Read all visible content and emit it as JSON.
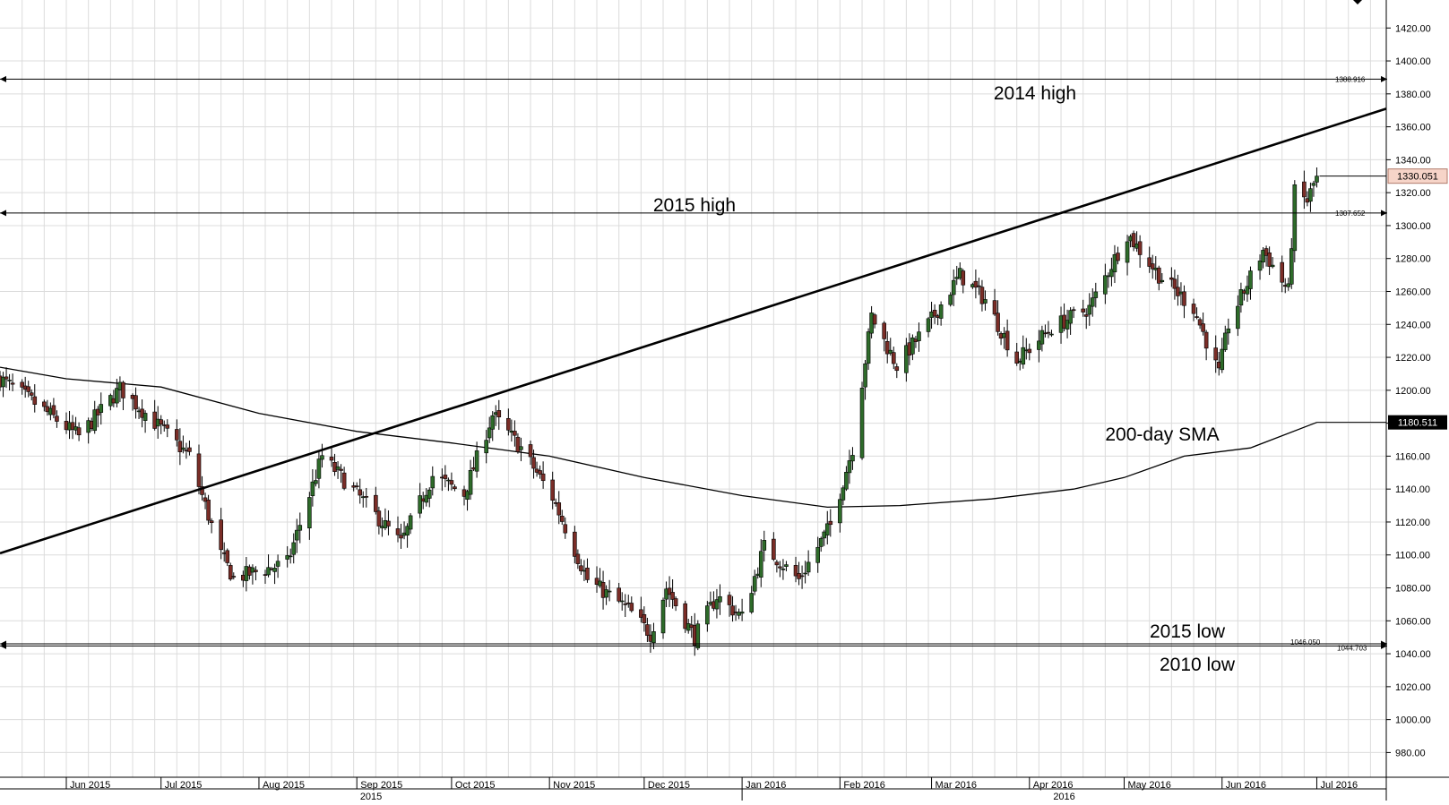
{
  "chart_data": {
    "type": "candlestick",
    "y_axis": {
      "min": 965,
      "max": 1437,
      "ticks": [
        980,
        1000,
        1020,
        1040,
        1060,
        1080,
        1100,
        1120,
        1140,
        1160,
        1180,
        1200,
        1220,
        1240,
        1260,
        1280,
        1300,
        1320,
        1340,
        1360,
        1380,
        1400,
        1420
      ],
      "tick_labels": [
        "980.00",
        "1000.00",
        "1020.00",
        "1040.00",
        "1060.00",
        "1080.00",
        "1100.00",
        "1120.00",
        "1140.00",
        "1160.00",
        "1180.00",
        "1200.00",
        "1220.00",
        "1240.00",
        "1260.00",
        "1280.00",
        "1300.00",
        "1320.00",
        "1340.00",
        "1360.00",
        "1380.00",
        "1400.00",
        "1420.00"
      ]
    },
    "x_axis": {
      "start": "2015-05-11",
      "end": "2016-07-23",
      "months": [
        {
          "date": "2015-06-01",
          "label": "Jun 2015"
        },
        {
          "date": "2015-07-01",
          "label": "Jul 2015"
        },
        {
          "date": "2015-08-01",
          "label": "Aug 2015"
        },
        {
          "date": "2015-09-01",
          "label": "Sep 2015"
        },
        {
          "date": "2015-10-01",
          "label": "Oct 2015"
        },
        {
          "date": "2015-11-01",
          "label": "Nov 2015"
        },
        {
          "date": "2015-12-01",
          "label": "Dec 2015"
        },
        {
          "date": "2016-01-01",
          "label": "Jan 2016"
        },
        {
          "date": "2016-02-01",
          "label": "Feb 2016"
        },
        {
          "date": "2016-03-01",
          "label": "Mar 2016"
        },
        {
          "date": "2016-04-01",
          "label": "Apr 2016"
        },
        {
          "date": "2016-05-01",
          "label": "May 2016"
        },
        {
          "date": "2016-06-01",
          "label": "Jun 2016"
        },
        {
          "date": "2016-07-01",
          "label": "Jul 2016"
        }
      ],
      "years": [
        {
          "label": "2015",
          "from": "2015-05-11",
          "to": "2016-01-01"
        },
        {
          "label": "2016",
          "from": "2016-01-01",
          "to": "2016-07-23"
        }
      ]
    },
    "price_key_points": [
      {
        "date": "2015-05-11",
        "close": 1207
      },
      {
        "date": "2015-05-20",
        "close": 1195
      },
      {
        "date": "2015-06-05",
        "close": 1172
      },
      {
        "date": "2015-06-18",
        "close": 1201
      },
      {
        "date": "2015-07-10",
        "close": 1160
      },
      {
        "date": "2015-07-20",
        "close": 1100
      },
      {
        "date": "2015-07-24",
        "close": 1086
      },
      {
        "date": "2015-08-10",
        "close": 1095
      },
      {
        "date": "2015-08-21",
        "close": 1160
      },
      {
        "date": "2015-09-02",
        "close": 1135
      },
      {
        "date": "2015-09-15",
        "close": 1107
      },
      {
        "date": "2015-09-25",
        "close": 1148
      },
      {
        "date": "2015-10-05",
        "close": 1137
      },
      {
        "date": "2015-10-14",
        "close": 1185
      },
      {
        "date": "2015-10-23",
        "close": 1165
      },
      {
        "date": "2015-11-02",
        "close": 1135
      },
      {
        "date": "2015-11-13",
        "close": 1085
      },
      {
        "date": "2015-11-26",
        "close": 1067
      },
      {
        "date": "2015-12-03",
        "close": 1052
      },
      {
        "date": "2015-12-08",
        "close": 1080
      },
      {
        "date": "2015-12-17",
        "close": 1050
      },
      {
        "date": "2015-12-24",
        "close": 1075
      },
      {
        "date": "2016-01-01",
        "close": 1062
      },
      {
        "date": "2016-01-08",
        "close": 1105
      },
      {
        "date": "2016-01-19",
        "close": 1085
      },
      {
        "date": "2016-01-29",
        "close": 1118
      },
      {
        "date": "2016-02-05",
        "close": 1165
      },
      {
        "date": "2016-02-11",
        "close": 1245
      },
      {
        "date": "2016-02-19",
        "close": 1215
      },
      {
        "date": "2016-02-29",
        "close": 1240
      },
      {
        "date": "2016-03-10",
        "close": 1270
      },
      {
        "date": "2016-03-18",
        "close": 1255
      },
      {
        "date": "2016-03-28",
        "close": 1218
      },
      {
        "date": "2016-04-08",
        "close": 1238
      },
      {
        "date": "2016-04-20",
        "close": 1250
      },
      {
        "date": "2016-05-02",
        "close": 1295
      },
      {
        "date": "2016-05-12",
        "close": 1270
      },
      {
        "date": "2016-05-23",
        "close": 1250
      },
      {
        "date": "2016-05-31",
        "close": 1210
      },
      {
        "date": "2016-06-03",
        "close": 1240
      },
      {
        "date": "2016-06-14",
        "close": 1285
      },
      {
        "date": "2016-06-22",
        "close": 1260
      },
      {
        "date": "2016-06-24",
        "close": 1320
      },
      {
        "date": "2016-06-28",
        "close": 1315
      },
      {
        "date": "2016-07-01",
        "close": 1330.051
      }
    ],
    "sma_200_key_points": [
      {
        "date": "2015-05-11",
        "value": 1214
      },
      {
        "date": "2015-06-01",
        "value": 1207
      },
      {
        "date": "2015-07-01",
        "value": 1202
      },
      {
        "date": "2015-08-01",
        "value": 1186
      },
      {
        "date": "2015-09-01",
        "value": 1175
      },
      {
        "date": "2015-10-01",
        "value": 1168
      },
      {
        "date": "2015-11-01",
        "value": 1160
      },
      {
        "date": "2015-12-01",
        "value": 1147
      },
      {
        "date": "2016-01-01",
        "value": 1136
      },
      {
        "date": "2016-01-28",
        "value": 1129
      },
      {
        "date": "2016-02-20",
        "value": 1130
      },
      {
        "date": "2016-03-20",
        "value": 1134
      },
      {
        "date": "2016-04-15",
        "value": 1140
      },
      {
        "date": "2016-05-01",
        "value": 1147
      },
      {
        "date": "2016-05-20",
        "value": 1160
      },
      {
        "date": "2016-06-10",
        "value": 1165
      },
      {
        "date": "2016-07-01",
        "value": 1180.511
      }
    ],
    "trend_line": {
      "from": {
        "date": "2015-05-11",
        "value": 1101
      },
      "to": {
        "date": "2016-07-23",
        "value": 1371
      }
    },
    "horizontal_levels": [
      {
        "name": "2014 high",
        "value": 1388.916,
        "label": "1388.916"
      },
      {
        "name": "2015 high",
        "value": 1307.652,
        "label": "1307.652"
      },
      {
        "name": "2015 low",
        "value": 1046.05,
        "label": "1046.050"
      },
      {
        "name": "2010 low",
        "value": 1044.703,
        "label": "1044.703"
      }
    ],
    "annotations": {
      "high_2014": "2014 high",
      "high_2015": "2015 high",
      "sma_label": "200-day SMA",
      "low_2015": "2015 low",
      "low_2010": "2010 low"
    },
    "price_tags": {
      "last_price": {
        "value": 1330.051,
        "label": "1330.051",
        "color": "#f6d4c8"
      },
      "sma_value": {
        "value": 1180.511,
        "label": "1180.511",
        "color": "#000000"
      }
    },
    "candle_colors": {
      "up": "#2e6b2a",
      "down": "#7a2d27",
      "wick": "#000000"
    }
  }
}
